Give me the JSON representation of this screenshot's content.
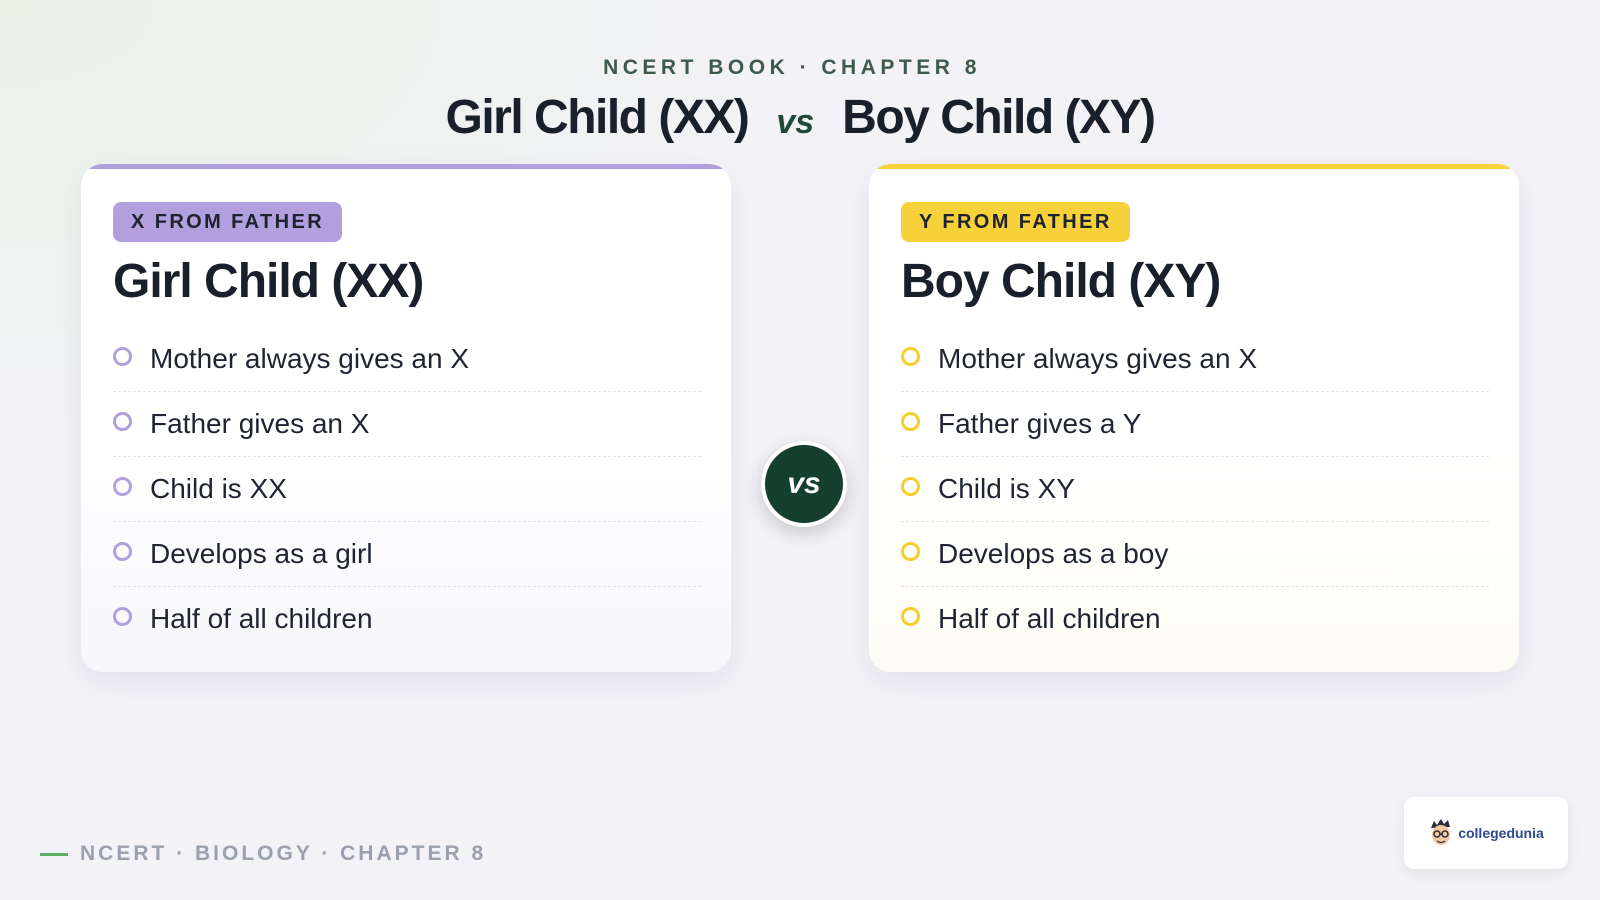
{
  "header": {
    "kicker": "NCERT BOOK · CHAPTER 8",
    "title_left": "Girl Child (XX)",
    "title_vs": "vs",
    "title_right": "Boy Child (XY)"
  },
  "cards": [
    {
      "badge": "X FROM FATHER",
      "title": "Girl Child (XX)",
      "accent": "#b29fdd",
      "items": [
        "Mother always gives an X",
        "Father gives an X",
        "Child is XX",
        "Develops as a girl",
        "Half of all children"
      ]
    },
    {
      "badge": "Y FROM FATHER",
      "title": "Boy Child (XY)",
      "accent": "#f7d13a",
      "items": [
        "Mother always gives an X",
        "Father gives a Y",
        "Child is XY",
        "Develops as a boy",
        "Half of all children"
      ]
    }
  ],
  "vs_circle": "vs",
  "footer": {
    "text": "NCERT · BIOLOGY · CHAPTER 8"
  },
  "logo": {
    "text": "collegedunia",
    "icon": "mascot-icon"
  }
}
